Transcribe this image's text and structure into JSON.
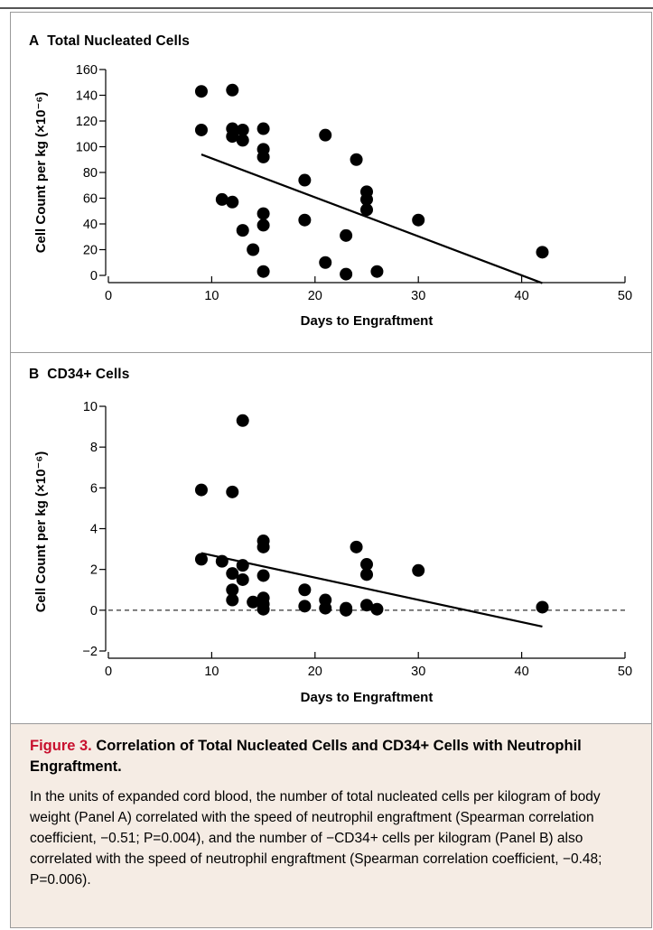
{
  "caption": {
    "figure_label": "Figure 3.",
    "title": "Correlation of Total Nucleated Cells and CD34+ Cells with Neutrophil Engraftment.",
    "body": "In the units of expanded cord blood, the number of total nucleated cells per kilogram of body weight (Panel A) correlated with the speed of neutrophil engraftment (Spearman correlation coefficient, −0.51; P=0.004), and the number of −CD34+ cells per kilogram (Panel B) also correlated with the speed of neutrophil engraftment (Spearman correlation coefficient, −0.48; P=0.006)."
  },
  "colors": {
    "figure_label": "#c8102e",
    "caption_bg": "#f5ece4",
    "frame": "#9a9a9a",
    "points": "#000000"
  },
  "chart_data": [
    {
      "type": "scatter",
      "panel_letter": "A",
      "title": "Total Nucleated Cells",
      "xlabel": "Days to Engraftment",
      "ylabel": "Cell Count per kg (×10⁻⁶)",
      "xlim": [
        0,
        50
      ],
      "ylim": [
        0,
        160
      ],
      "xticks": [
        0,
        10,
        20,
        30,
        40,
        50
      ],
      "yticks": [
        0,
        20,
        40,
        60,
        80,
        100,
        120,
        140,
        160
      ],
      "grid": false,
      "reference_line_y": null,
      "points": [
        [
          9,
          143
        ],
        [
          9,
          113
        ],
        [
          12,
          144
        ],
        [
          12,
          114
        ],
        [
          12,
          108
        ],
        [
          13,
          113
        ],
        [
          13,
          105
        ],
        [
          11,
          59
        ],
        [
          12,
          57
        ],
        [
          13,
          35
        ],
        [
          14,
          20
        ],
        [
          15,
          114
        ],
        [
          15,
          98
        ],
        [
          15,
          92
        ],
        [
          15,
          48
        ],
        [
          15,
          39
        ],
        [
          15,
          3
        ],
        [
          19,
          74
        ],
        [
          19,
          43
        ],
        [
          21,
          109
        ],
        [
          21,
          10
        ],
        [
          23,
          31
        ],
        [
          23,
          1
        ],
        [
          24,
          90
        ],
        [
          25,
          65
        ],
        [
          25,
          59
        ],
        [
          25,
          51
        ],
        [
          26,
          3
        ],
        [
          30,
          43
        ],
        [
          42,
          18
        ]
      ],
      "regression": [
        [
          9,
          94
        ],
        [
          42,
          -6
        ]
      ]
    },
    {
      "type": "scatter",
      "panel_letter": "B",
      "title": "CD34+ Cells",
      "xlabel": "Days to Engraftment",
      "ylabel": "Cell Count per kg (×10⁻⁶)",
      "xlim": [
        0,
        50
      ],
      "ylim": [
        -2,
        10
      ],
      "xticks": [
        0,
        10,
        20,
        30,
        40,
        50
      ],
      "yticks": [
        -2,
        0,
        2,
        4,
        6,
        8,
        10
      ],
      "grid": false,
      "reference_line_y": 0,
      "points": [
        [
          9,
          5.9
        ],
        [
          9,
          2.5
        ],
        [
          11,
          2.4
        ],
        [
          12,
          5.8
        ],
        [
          12,
          1.8
        ],
        [
          12,
          1.0
        ],
        [
          12,
          0.5
        ],
        [
          13,
          9.3
        ],
        [
          13,
          2.2
        ],
        [
          13,
          1.5
        ],
        [
          14,
          0.4
        ],
        [
          15,
          3.4
        ],
        [
          15,
          3.1
        ],
        [
          15,
          1.7
        ],
        [
          15,
          0.6
        ],
        [
          15,
          0.3
        ],
        [
          15,
          0.05
        ],
        [
          19,
          1.0
        ],
        [
          19,
          0.2
        ],
        [
          21,
          0.5
        ],
        [
          21,
          0.1
        ],
        [
          23,
          0.1
        ],
        [
          23,
          0.0
        ],
        [
          24,
          3.1
        ],
        [
          25,
          2.25
        ],
        [
          25,
          1.75
        ],
        [
          25,
          0.25
        ],
        [
          26,
          0.05
        ],
        [
          30,
          1.95
        ],
        [
          42,
          0.15
        ]
      ],
      "regression": [
        [
          9,
          2.8
        ],
        [
          42,
          -0.8
        ]
      ]
    }
  ]
}
